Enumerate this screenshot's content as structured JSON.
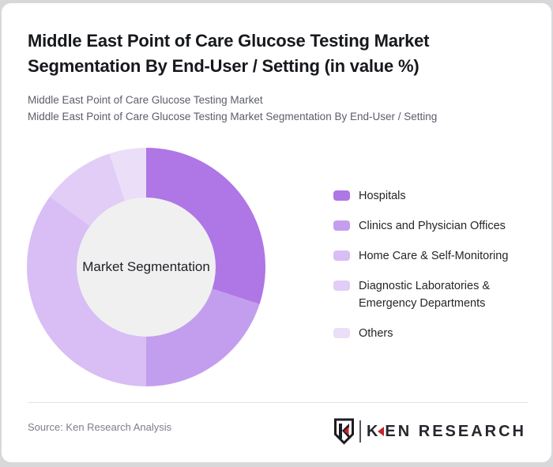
{
  "header": {
    "title": "Middle East Point of Care Glucose Testing Market Segmentation By End-User / Setting (in value %)",
    "subtitle_line1": "Middle East Point of Care Glucose Testing Market",
    "subtitle_line2": "Middle East Point of Care Glucose Testing Market Segmentation By End-User / Setting"
  },
  "chart_data": {
    "type": "pie",
    "subtype": "donut",
    "title": "Middle East Point of Care Glucose Testing Market Segmentation By End-User / Setting (in value %)",
    "center_label": "Market Segmentation",
    "unit": "value %",
    "start_angle_deg": 0,
    "direction": "clockwise",
    "legend_position": "right",
    "inner_circle_color": "#f0f0f1",
    "series": [
      {
        "name": "Hospitals",
        "value": 30,
        "color": "#af76e5"
      },
      {
        "name": "Clinics and Physician Offices",
        "value": 20,
        "color": "#c49eee"
      },
      {
        "name": "Home Care & Self-Monitoring",
        "value": 35,
        "color": "#d8bef4"
      },
      {
        "name": "Diagnostic Laboratories & Emergency Departments",
        "value": 10,
        "color": "#e1cdf6"
      },
      {
        "name": "Others",
        "value": 5,
        "color": "#ebdef9"
      }
    ]
  },
  "footer": {
    "source": "Source: Ken Research Analysis",
    "logo": {
      "shield_letter": "K",
      "brand_first_letter": "K",
      "brand_rest": "EN RESEARCH",
      "accent_color": "#c1272d"
    }
  }
}
